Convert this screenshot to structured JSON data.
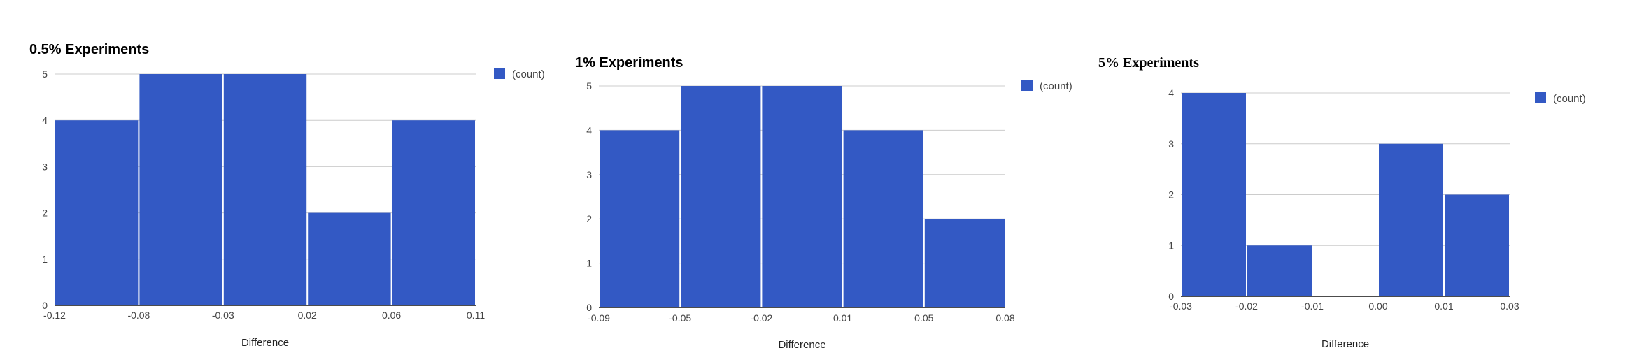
{
  "chart_data": [
    {
      "type": "bar",
      "title": "0.5% Experiments",
      "xlabel": "Difference",
      "ylabel": "",
      "x_ticks": [
        "-0.12",
        "-0.08",
        "-0.03",
        "0.02",
        "0.06",
        "0.11"
      ],
      "y_ticks": [
        "0",
        "1",
        "2",
        "3",
        "4",
        "5"
      ],
      "ylim": [
        0,
        5
      ],
      "categories": [
        "-0.12 to -0.08",
        "-0.08 to -0.03",
        "-0.03 to 0.02",
        "0.02 to 0.06",
        "0.06 to 0.11"
      ],
      "series": [
        {
          "name": "(count)",
          "values": [
            4,
            5,
            5,
            2,
            4
          ]
        }
      ],
      "legend_position": "right",
      "grid": true,
      "bar_color": "#3359c4"
    },
    {
      "type": "bar",
      "title": "1% Experiments",
      "xlabel": "Difference",
      "ylabel": "",
      "x_ticks": [
        "-0.09",
        "-0.05",
        "-0.02",
        "0.01",
        "0.05",
        "0.08"
      ],
      "y_ticks": [
        "0",
        "1",
        "2",
        "3",
        "4",
        "5"
      ],
      "ylim": [
        0,
        5
      ],
      "categories": [
        "-0.09 to -0.05",
        "-0.05 to -0.02",
        "-0.02 to 0.01",
        "0.01 to 0.05",
        "0.05 to 0.08"
      ],
      "series": [
        {
          "name": "(count)",
          "values": [
            4,
            5,
            5,
            4,
            2
          ]
        }
      ],
      "legend_position": "right",
      "grid": true,
      "bar_color": "#3359c4"
    },
    {
      "type": "bar",
      "title": "5% Experiments",
      "xlabel": "Difference",
      "ylabel": "",
      "x_ticks": [
        "-0.03",
        "-0.02",
        "-0.01",
        "0.00",
        "0.01",
        "0.03"
      ],
      "y_ticks": [
        "0",
        "1",
        "2",
        "3",
        "4"
      ],
      "ylim": [
        0,
        4
      ],
      "categories": [
        "-0.03 to -0.02",
        "-0.02 to -0.01",
        "-0.01 to 0.00",
        "0.00 to 0.01",
        "0.01 to 0.03"
      ],
      "series": [
        {
          "name": "(count)",
          "values": [
            4,
            1,
            0,
            3,
            2
          ]
        }
      ],
      "legend_position": "right",
      "grid": true,
      "bar_color": "#3359c4"
    }
  ]
}
